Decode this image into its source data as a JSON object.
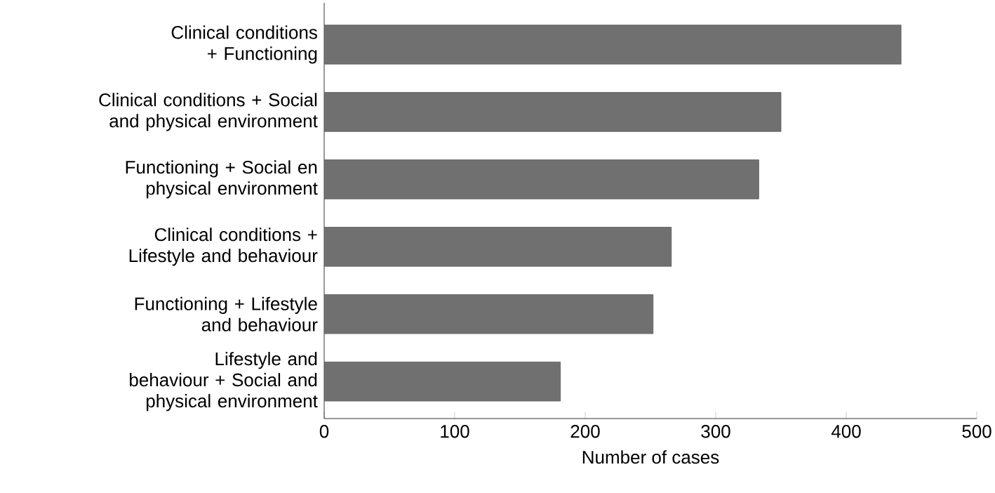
{
  "chart_data": {
    "type": "bar",
    "orientation": "horizontal",
    "xlabel": "Number of cases",
    "categories": [
      "Clinical conditions + Functioning",
      "Clinical conditions + Social and physical environment",
      "Functioning + Social en physical environment",
      "Clinical conditions + Lifestyle and behaviour",
      "Functioning + Lifestyle and behaviour",
      "Lifestyle and behaviour + Social and physical environment"
    ],
    "values": [
      442,
      350,
      333,
      266,
      252,
      181
    ],
    "color": "#707070",
    "xlim": [
      0,
      500
    ],
    "xticks": [
      0,
      100,
      200,
      300,
      400,
      500
    ],
    "grid": false
  }
}
